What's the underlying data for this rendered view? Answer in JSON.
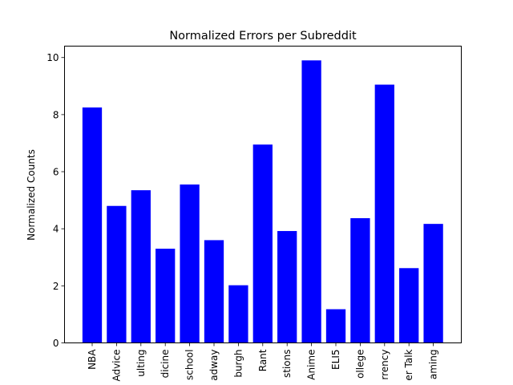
{
  "chart_data": {
    "type": "bar",
    "title": "Normalized Errors per Subreddit",
    "xlabel": "",
    "ylabel": "Normalized Counts",
    "ylim": [
      0,
      10.4
    ],
    "yticks": [
      0,
      2,
      4,
      6,
      8,
      10
    ],
    "grid": false,
    "bar_color": "#0000ff",
    "categories": [
      "NBA",
      "Advice",
      "ulting",
      "dicine",
      "school",
      "adway",
      "burgh",
      "Rant",
      "stions",
      "Anime",
      "ELI5",
      "ollege",
      "rrency",
      "er Talk",
      "aming"
    ],
    "values": [
      8.25,
      4.8,
      5.35,
      3.3,
      5.55,
      3.6,
      2.02,
      6.95,
      3.92,
      9.9,
      1.18,
      4.37,
      9.05,
      2.62,
      4.17
    ]
  }
}
